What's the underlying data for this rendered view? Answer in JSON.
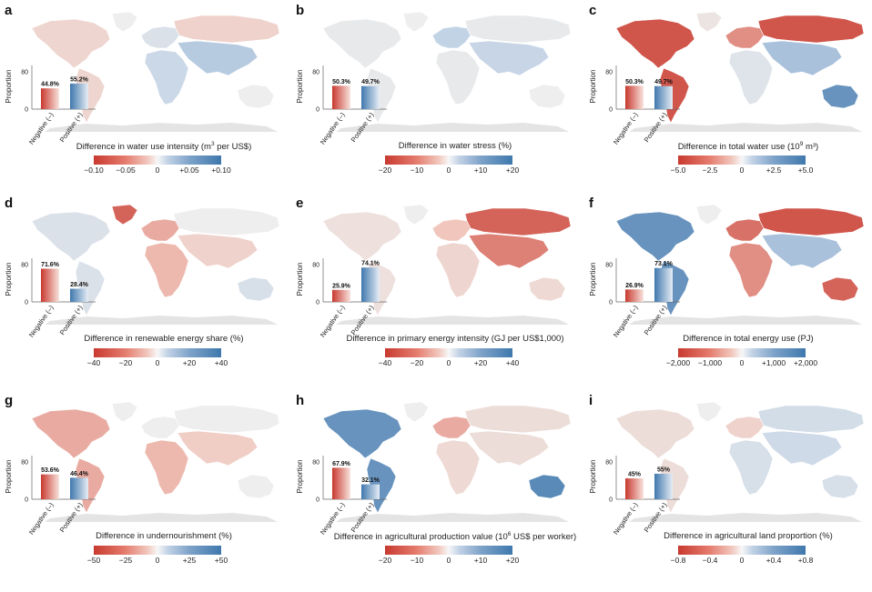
{
  "colors": {
    "negative": "#c8392f",
    "negative_light": "#f1c7bd",
    "neutral": "#ebebeb",
    "positive_light": "#c3d3e6",
    "positive": "#3f78ad",
    "land": "#eeeeee",
    "antarctica": "#e4e4e4"
  },
  "inset_labels": {
    "ylabel": "Proportion",
    "neg": "Negative (–)",
    "pos": "Positive (+)",
    "yticks": [
      "0",
      "80"
    ]
  },
  "chart_data": [
    {
      "letter": "a",
      "type": "bar",
      "categories": [
        "Negative (–)",
        "Positive (+)"
      ],
      "values": [
        44.8,
        55.2
      ],
      "value_labels": [
        "44.8%",
        "55.2%"
      ],
      "ylabel": "Proportion",
      "ylim": [
        0,
        100
      ],
      "colorbar": {
        "title_pre": "Difference in water use intensity (m",
        "sup": "3",
        "title_post": " per US$)",
        "ticks": [
          "−0.10",
          "−0.05",
          "0",
          "+0.05",
          "+0.10"
        ]
      },
      "map_shading": {
        "americas": -0.3,
        "europe": 0.2,
        "russia": -0.35,
        "africa": 0.4,
        "asia": 0.55,
        "oceania": 0.0,
        "greenland": 0.0
      }
    },
    {
      "letter": "b",
      "type": "bar",
      "categories": [
        "Negative (–)",
        "Positive (+)"
      ],
      "values": [
        50.3,
        49.7
      ],
      "value_labels": [
        "50.3%",
        "49.7%"
      ],
      "ylabel": "Proportion",
      "ylim": [
        0,
        100
      ],
      "colorbar": {
        "title_pre": "Difference in water stress (%)",
        "sup": "",
        "title_post": "",
        "ticks": [
          "−20",
          "−10",
          "0",
          "+10",
          "+20"
        ]
      },
      "map_shading": {
        "americas": 0.05,
        "europe": 0.5,
        "russia": 0.05,
        "africa": 0.05,
        "asia": 0.45,
        "oceania": 0.0,
        "greenland": 0.0
      }
    },
    {
      "letter": "c",
      "type": "bar",
      "categories": [
        "Negative (–)",
        "Positive (+)"
      ],
      "values": [
        50.3,
        49.7
      ],
      "value_labels": [
        "50.3%",
        "49.7%"
      ],
      "ylabel": "Proportion",
      "ylim": [
        0,
        100
      ],
      "colorbar": {
        "title_pre": "Difference in total water use (10",
        "sup": "9",
        "title_post": " m³)",
        "ticks": [
          "−5.0",
          "−2.5",
          "0",
          "+2.5",
          "+5.0"
        ]
      },
      "map_shading": {
        "americas": -0.9,
        "europe": -0.7,
        "russia": -0.9,
        "africa": 0.15,
        "asia": 0.6,
        "oceania": 0.85,
        "greenland": -0.1
      }
    },
    {
      "letter": "d",
      "type": "bar",
      "categories": [
        "Negative (–)",
        "Positive (+)"
      ],
      "values": [
        71.6,
        28.4
      ],
      "value_labels": [
        "71.6%",
        "28.4%"
      ],
      "ylabel": "Proportion",
      "ylim": [
        0,
        100
      ],
      "colorbar": {
        "title_pre": "Difference in renewable energy share (%)",
        "sup": "",
        "title_post": "",
        "ticks": [
          "−40",
          "−20",
          "0",
          "+20",
          "+40"
        ]
      },
      "map_shading": {
        "americas": 0.2,
        "europe": -0.6,
        "russia": 0.0,
        "africa": -0.55,
        "asia": -0.35,
        "oceania": 0.25,
        "greenland": -0.85
      }
    },
    {
      "letter": "e",
      "type": "bar",
      "categories": [
        "Negative (–)",
        "Positive (+)"
      ],
      "values": [
        25.9,
        74.1
      ],
      "value_labels": [
        "25.9%",
        "74.1%"
      ],
      "ylabel": "Proportion",
      "ylim": [
        0,
        100
      ],
      "colorbar": {
        "title_pre": "Difference in primary energy intensity (GJ per US$1,000)",
        "sup": "",
        "title_post": "",
        "ticks": [
          "−40",
          "−20",
          "0",
          "+20",
          "+40"
        ]
      },
      "map_shading": {
        "americas": -0.15,
        "europe": -0.5,
        "russia": -0.85,
        "africa": -0.3,
        "asia": -0.75,
        "oceania": -0.25,
        "greenland": 0.0
      }
    },
    {
      "letter": "f",
      "type": "bar",
      "categories": [
        "Negative (–)",
        "Positive (+)"
      ],
      "values": [
        26.9,
        73.1
      ],
      "value_labels": [
        "26.9%",
        "73.1%"
      ],
      "ylabel": "Proportion",
      "ylim": [
        0,
        100
      ],
      "colorbar": {
        "title_pre": "Difference in total energy use (PJ)",
        "sup": "",
        "title_post": "",
        "ticks": [
          "−2,000",
          "−1,000",
          "0",
          "+1,000",
          "+2,000"
        ]
      },
      "map_shading": {
        "americas": 0.85,
        "europe": -0.8,
        "russia": -0.9,
        "africa": -0.7,
        "asia": 0.6,
        "oceania": -0.85,
        "greenland": 0.0
      }
    },
    {
      "letter": "g",
      "type": "bar",
      "categories": [
        "Negative (–)",
        "Positive (+)"
      ],
      "values": [
        53.6,
        46.4
      ],
      "value_labels": [
        "53.6%",
        "46.4%"
      ],
      "ylabel": "Proportion",
      "ylim": [
        0,
        100
      ],
      "colorbar": {
        "title_pre": "Difference in undernourishment (%)",
        "sup": "",
        "title_post": "",
        "ticks": [
          "−50",
          "−25",
          "0",
          "+25",
          "+50"
        ]
      },
      "map_shading": {
        "americas": -0.6,
        "europe": 0.0,
        "russia": 0.0,
        "africa": -0.55,
        "asia": -0.4,
        "oceania": 0.0,
        "greenland": 0.0
      }
    },
    {
      "letter": "h",
      "type": "bar",
      "categories": [
        "Negative (–)",
        "Positive (+)"
      ],
      "values": [
        67.9,
        32.1
      ],
      "value_labels": [
        "67.9%",
        "32.1%"
      ],
      "ylabel": "Proportion",
      "ylim": [
        0,
        100
      ],
      "colorbar": {
        "title_pre": "Difference in agricultural production value (10",
        "sup": "6",
        "title_post": " US$ per worker)",
        "ticks": [
          "−20",
          "−10",
          "0",
          "+10",
          "+20"
        ]
      },
      "map_shading": {
        "americas": 0.85,
        "europe": -0.6,
        "russia": -0.2,
        "africa": -0.25,
        "asia": -0.2,
        "oceania": 0.9,
        "greenland": 0.0
      }
    },
    {
      "letter": "i",
      "type": "bar",
      "categories": [
        "Negative (–)",
        "Positive (+)"
      ],
      "values": [
        45,
        55
      ],
      "value_labels": [
        "45%",
        "55%"
      ],
      "ylabel": "Proportion",
      "ylim": [
        0,
        100
      ],
      "colorbar": {
        "title_pre": "Difference in agricultural land proportion (%)",
        "sup": "",
        "title_post": "",
        "ticks": [
          "−0.8",
          "−0.4",
          "0",
          "+0.4",
          "+0.8"
        ]
      },
      "map_shading": {
        "americas": -0.2,
        "europe": -0.35,
        "russia": 0.3,
        "africa": 0.25,
        "asia": 0.35,
        "oceania": 0.25,
        "greenland": 0.0
      }
    }
  ]
}
